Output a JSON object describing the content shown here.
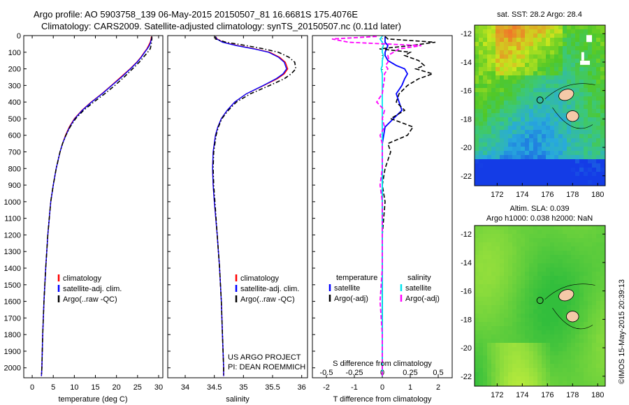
{
  "title_line1": "Argo profile: AO 5903758_139 06-May-2015 20150507_81 16.6681S 175.4076E",
  "title_line2": "Climatology: CARS2009. Satellite-adjusted climatology: synTS_20150507.nc (0.11d later)",
  "credit": "US ARGO PROJECT",
  "pi": "PI: DEAN ROEMMICH",
  "side_stamp": "©IMOS 15-May-2015 20:39:13",
  "chart_data": [
    {
      "type": "line",
      "id": "temperature",
      "xlabel": "temperature (deg C)",
      "ylabel": "",
      "xlim": [
        -2,
        31
      ],
      "ylim": [
        2060,
        0
      ],
      "xticks": [
        0,
        5,
        10,
        15,
        20,
        25,
        30
      ],
      "yticks": [
        0,
        100,
        200,
        300,
        400,
        500,
        600,
        700,
        800,
        900,
        1000,
        1100,
        1200,
        1300,
        1400,
        1500,
        1600,
        1700,
        1800,
        1900,
        2000
      ],
      "legend": [
        "climatology",
        "satellite-adj. clim.",
        "Argo(..raw -QC)"
      ],
      "legend_colors": [
        "#ff0000",
        "#0000ff",
        "#000000"
      ],
      "depth": [
        5,
        20,
        40,
        60,
        80,
        100,
        130,
        160,
        200,
        250,
        300,
        350,
        400,
        450,
        500,
        550,
        600,
        650,
        700,
        800,
        900,
        1000,
        1200,
        1400,
        1600,
        1800,
        2000,
        2050
      ],
      "series": [
        {
          "name": "climatology",
          "color": "#ff0000",
          "values": [
            28.3,
            28.2,
            28.0,
            27.6,
            27.2,
            26.6,
            25.8,
            24.8,
            23.2,
            21.0,
            18.8,
            16.5,
            14.0,
            11.8,
            10.0,
            8.8,
            7.9,
            7.2,
            6.6,
            5.7,
            5.0,
            4.4,
            3.7,
            3.2,
            2.8,
            2.5,
            2.3,
            2.2
          ]
        },
        {
          "name": "satellite",
          "color": "#0000ff",
          "values": [
            28.4,
            28.3,
            28.1,
            27.8,
            27.3,
            26.7,
            25.9,
            24.9,
            23.3,
            21.2,
            18.9,
            16.6,
            14.1,
            11.9,
            10.1,
            8.9,
            8.0,
            7.2,
            6.6,
            5.7,
            5.0,
            4.4,
            3.7,
            3.2,
            2.8,
            2.5,
            2.3,
            2.2
          ]
        },
        {
          "name": "Argo",
          "color": "#000000",
          "values": [
            28.4,
            28.4,
            28.3,
            28.2,
            28.0,
            27.4,
            26.4,
            25.4,
            23.8,
            21.8,
            19.6,
            17.2,
            14.6,
            12.2,
            10.3,
            9.0,
            8.0,
            7.2,
            6.6,
            5.7,
            5.0,
            4.4,
            3.7,
            3.2,
            2.8,
            2.5,
            2.3,
            2.2
          ]
        }
      ]
    },
    {
      "type": "line",
      "id": "salinity",
      "xlabel": "salinity",
      "ylabel": "",
      "xlim": [
        33.7,
        36.1
      ],
      "ylim": [
        2060,
        0
      ],
      "xticks": [
        34,
        34.5,
        35,
        35.5,
        36
      ],
      "legend": [
        "climatology",
        "satellite-adj. clim.",
        "Argo(..raw -QC)"
      ],
      "legend_colors": [
        "#ff0000",
        "#0000ff",
        "#000000"
      ],
      "depth": [
        5,
        20,
        40,
        60,
        80,
        100,
        130,
        160,
        200,
        230,
        260,
        300,
        350,
        400,
        450,
        500,
        550,
        600,
        700,
        800,
        900,
        1000,
        1200,
        1400,
        1600,
        1800,
        2000,
        2050
      ],
      "series": [
        {
          "name": "climatology",
          "color": "#ff0000",
          "values": [
            34.52,
            34.55,
            34.65,
            34.9,
            35.2,
            35.45,
            35.62,
            35.72,
            35.76,
            35.7,
            35.58,
            35.35,
            35.05,
            34.85,
            34.72,
            34.62,
            34.56,
            34.52,
            34.48,
            34.47,
            34.48,
            34.5,
            34.55,
            34.59,
            34.62,
            34.64,
            34.66,
            34.66
          ]
        },
        {
          "name": "satellite",
          "color": "#0000ff",
          "values": [
            34.52,
            34.54,
            34.64,
            34.88,
            35.18,
            35.43,
            35.6,
            35.7,
            35.74,
            35.68,
            35.56,
            35.34,
            35.05,
            34.85,
            34.72,
            34.62,
            34.56,
            34.52,
            34.48,
            34.47,
            34.48,
            34.5,
            34.55,
            34.59,
            34.62,
            34.64,
            34.66,
            34.66
          ]
        },
        {
          "name": "Argo",
          "color": "#000000",
          "values": [
            34.52,
            34.52,
            34.7,
            35.05,
            35.35,
            35.6,
            35.78,
            35.88,
            35.9,
            35.82,
            35.7,
            35.45,
            35.12,
            34.88,
            34.74,
            34.63,
            34.57,
            34.53,
            34.49,
            34.48,
            34.49,
            34.51,
            34.55,
            34.59,
            34.62,
            34.64,
            34.66,
            34.66
          ]
        }
      ]
    },
    {
      "type": "line",
      "id": "difference",
      "xlabel": "T difference from climatology",
      "xlabel_top": "S difference from climatology",
      "xlim": [
        -2.5,
        2.5
      ],
      "ylim": [
        2060,
        0
      ],
      "xticks": [
        -2,
        -1,
        0,
        1,
        2
      ],
      "s_ticks": [
        "-0.5",
        "-0.25",
        "0",
        "0.25",
        "0.5"
      ],
      "legend_temperature_title": "temperature",
      "legend_salinity_title": "salinity",
      "legend_temperature": [
        "satellite",
        "Argo(-adj)"
      ],
      "legend_salinity": [
        "satellite",
        "Argo(-adj)"
      ],
      "depth": [
        5,
        20,
        40,
        60,
        80,
        100,
        120,
        150,
        180,
        200,
        230,
        260,
        300,
        350,
        400,
        450,
        500,
        550,
        600,
        650,
        700,
        800,
        900,
        1000,
        1200,
        1400,
        1600,
        1800,
        2000,
        2050
      ],
      "series": [
        {
          "name": "T satellite",
          "color": "#0000ff",
          "values": [
            0.1,
            0.1,
            0.1,
            0.2,
            0.15,
            0.1,
            0.1,
            0.2,
            0.5,
            0.8,
            0.9,
            0.8,
            0.7,
            0.5,
            0.6,
            0.7,
            0.4,
            0.1,
            0.05,
            0.0,
            0.0,
            0.0,
            0.0,
            0.0,
            0.0,
            0.0,
            0.0,
            0.0,
            0.0,
            0.0
          ]
        },
        {
          "name": "T Argo",
          "color": "#000000",
          "values": [
            0.1,
            0.2,
            1.9,
            1.0,
            -0.1,
            1.0,
            0.8,
            1.3,
            1.5,
            1.2,
            1.8,
            1.3,
            0.9,
            0.6,
            0.5,
            0.8,
            0.3,
            1.1,
            0.9,
            0.2,
            0.3,
            0.1,
            0.0,
            0.1,
            0.0,
            0.0,
            0.0,
            0.0,
            0.0,
            0.0
          ]
        },
        {
          "name": "S satellite",
          "color": "#00e5ee",
          "values": [
            0.0,
            -0.02,
            0.0,
            0.01,
            0.0,
            0.0,
            0.01,
            0.0,
            0.0,
            -0.01,
            0.0,
            0.0,
            0.0,
            0.0,
            0.0,
            0.0,
            0.0,
            0.0,
            0.0,
            0.0,
            0.0,
            0.0,
            0.0,
            0.0,
            0.0,
            0.0,
            0.0,
            0.0,
            0.0,
            0.0
          ]
        },
        {
          "name": "S Argo",
          "color": "#ff00ff",
          "values": [
            -0.05,
            -0.45,
            -0.3,
            0.35,
            0.15,
            0.1,
            0.05,
            0.06,
            0.03,
            0.05,
            0.02,
            0.02,
            0.01,
            0.0,
            -0.05,
            0.02,
            0.0,
            0.02,
            -0.02,
            0.0,
            0.0,
            0.0,
            -0.02,
            0.0,
            0.0,
            0.0,
            -0.02,
            0.0,
            0.0,
            0.0
          ]
        }
      ]
    },
    {
      "type": "heatmap",
      "id": "sst_map",
      "title": "sat. SST: 28.2 Argo: 28.4",
      "xticks": [
        172,
        174,
        176,
        178,
        180
      ],
      "yticks": [
        -12,
        -14,
        -16,
        -18,
        -20,
        -22
      ],
      "xlim": [
        170.2,
        180.6
      ],
      "ylim": [
        -22.7,
        -11.4
      ],
      "argo_position": [
        175.41,
        -16.67
      ]
    },
    {
      "type": "heatmap",
      "id": "sla_map",
      "title": "Altim. SLA: 0.039",
      "subtitle": "Argo h1000: 0.038 h2000: NaN",
      "xticks": [
        172,
        174,
        176,
        178,
        180
      ],
      "yticks": [
        -12,
        -14,
        -16,
        -18,
        -20,
        -22
      ],
      "xlim": [
        170.2,
        180.6
      ],
      "ylim": [
        -22.7,
        -11.4
      ],
      "argo_position": [
        175.41,
        -16.67
      ]
    }
  ]
}
